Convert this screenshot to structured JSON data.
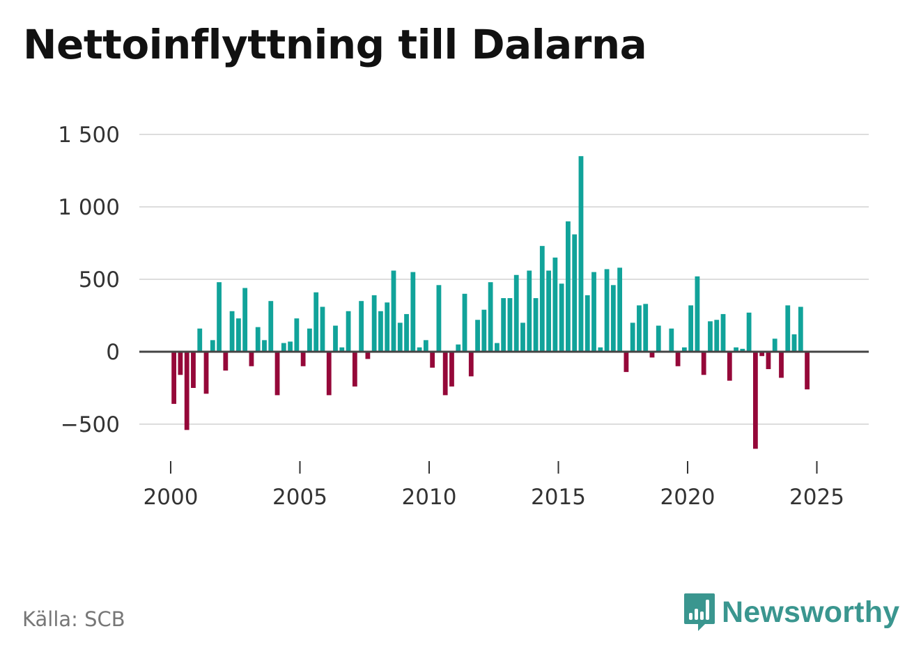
{
  "title": "Nettoinflyttning till Dalarna",
  "source": "Källa: SCB",
  "brand": {
    "name": "Newsworthy",
    "icon": "bar-chart-speech-bubble-icon"
  },
  "colors": {
    "positive": "#11a39a",
    "negative": "#950839",
    "grid": "#dddddd",
    "zero": "#444444",
    "brand": "#3a968f"
  },
  "chart_data": {
    "type": "bar",
    "title": "Nettoinflyttning till Dalarna",
    "xlabel": "",
    "ylabel": "",
    "ylim": [
      -700,
      1600
    ],
    "grid": true,
    "y_ticks": [
      -500,
      0,
      500,
      1000,
      1500
    ],
    "y_tick_labels": [
      "−500",
      "0",
      "500",
      "1 000",
      "1 500"
    ],
    "x_ticks": [
      2000,
      2005,
      2010,
      2015,
      2020,
      2025
    ],
    "x_tick_labels": [
      "2000",
      "2005",
      "2010",
      "2015",
      "2020",
      "2025"
    ],
    "frequency": "quarterly",
    "start": 2000.0,
    "series": [
      {
        "name": "Nettoinflyttning",
        "values": [
          -360,
          -160,
          -540,
          -250,
          160,
          -290,
          80,
          480,
          -130,
          280,
          230,
          440,
          -100,
          170,
          80,
          350,
          -300,
          60,
          70,
          230,
          -100,
          160,
          410,
          310,
          -300,
          180,
          30,
          280,
          -240,
          350,
          -50,
          390,
          280,
          340,
          560,
          200,
          260,
          550,
          30,
          80,
          -110,
          460,
          -300,
          -240,
          50,
          400,
          -170,
          220,
          290,
          480,
          60,
          370,
          370,
          530,
          200,
          560,
          370,
          730,
          560,
          650,
          470,
          900,
          810,
          1350,
          390,
          550,
          30,
          570,
          460,
          580,
          -140,
          200,
          320,
          330,
          -40,
          180,
          0,
          160,
          -100,
          30,
          320,
          520,
          -160,
          210,
          220,
          260,
          -200,
          30,
          20,
          270,
          -670,
          -30,
          -120,
          90,
          -180,
          320,
          120,
          310,
          -260
        ]
      }
    ]
  }
}
